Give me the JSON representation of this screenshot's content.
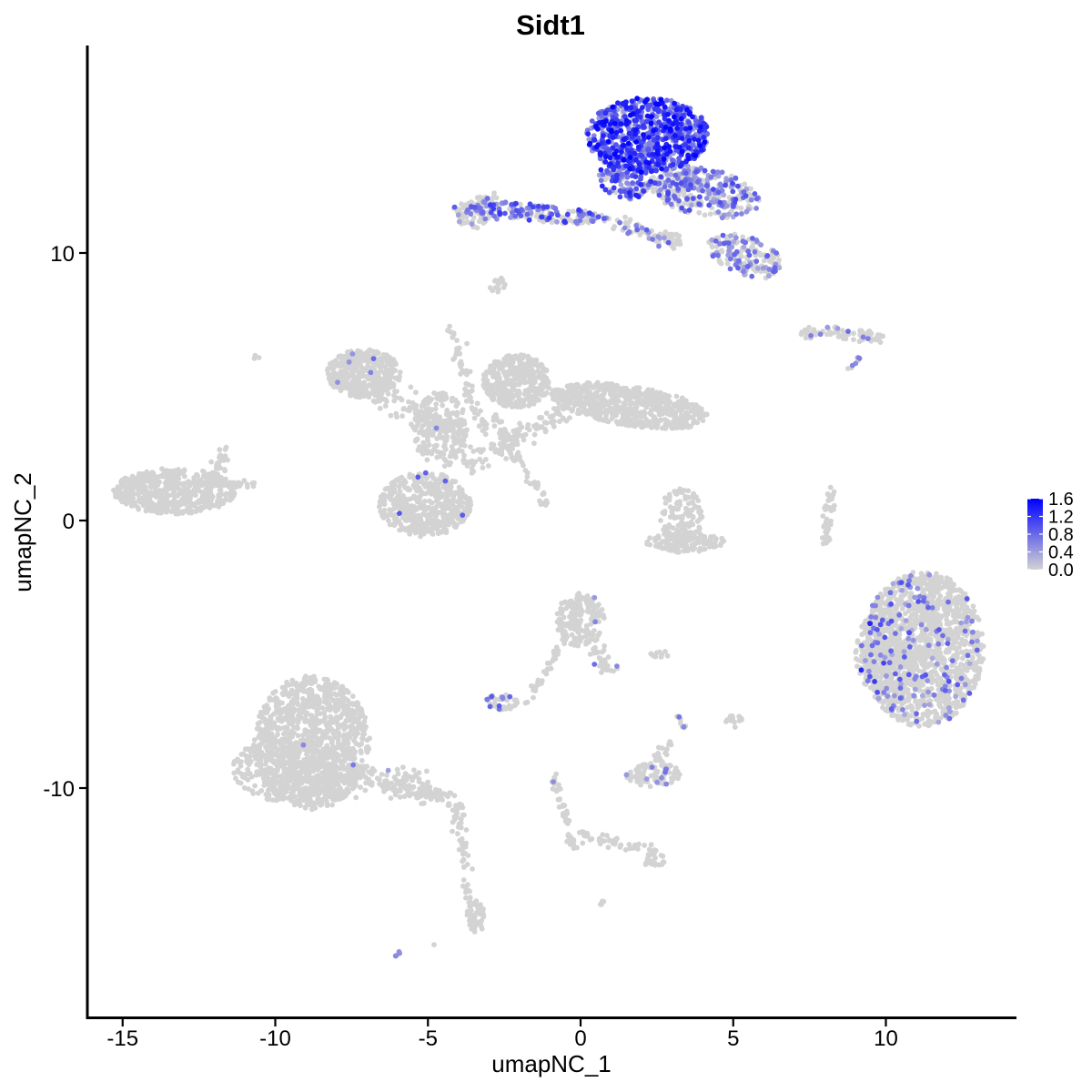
{
  "chart_data": {
    "type": "scatter",
    "title": "Sidt1",
    "xlabel": "umapNC_1",
    "ylabel": "umapNC_2",
    "xlim": [
      -16.5,
      14.5
    ],
    "ylim": [
      -18.5,
      17.5
    ],
    "xticks": [
      -15,
      -10,
      -5,
      0,
      5,
      10
    ],
    "xtick_labels": [
      "-15",
      "-10",
      "-5",
      "0",
      "5",
      "10"
    ],
    "yticks": [
      -10,
      0,
      10
    ],
    "ytick_labels": [
      "-10",
      "0",
      "10"
    ],
    "grid": false,
    "color_scale": {
      "low": "#d3d3d3",
      "high": "#0000ff",
      "min": 0.0,
      "max": 1.6,
      "legend_ticks": [
        0.0,
        0.4,
        0.8,
        1.2,
        1.6
      ],
      "legend_tick_labels": [
        "0.0",
        "0.4",
        "0.8",
        "1.2",
        "1.6"
      ],
      "legend_position": "right"
    },
    "clusters": [
      {
        "shape": "ellipse",
        "cx": 2.2,
        "cy": 14.4,
        "rx": 2.0,
        "ry": 1.4,
        "rot": 0,
        "n": 750,
        "frac": 0.9,
        "emin": 0.4,
        "emax": 1.6
      },
      {
        "shape": "ellipse",
        "cx": 1.5,
        "cy": 12.9,
        "rx": 0.9,
        "ry": 0.9,
        "rot": 0,
        "n": 160,
        "frac": 0.7,
        "emin": 0.35,
        "emax": 1.4
      },
      {
        "shape": "ellipse",
        "cx": 4.0,
        "cy": 12.3,
        "rx": 1.9,
        "ry": 0.9,
        "rot": -15,
        "n": 320,
        "frac": 0.55,
        "emin": 0.3,
        "emax": 1.1
      },
      {
        "shape": "ellipse",
        "cx": 5.4,
        "cy": 9.9,
        "rx": 1.3,
        "ry": 0.7,
        "rot": -25,
        "n": 170,
        "frac": 0.35,
        "emin": 0.3,
        "emax": 0.9
      },
      {
        "shape": "ellipse",
        "cx": -1.5,
        "cy": 11.5,
        "rx": 2.5,
        "ry": 0.32,
        "rot": -6,
        "n": 180,
        "frac": 0.4,
        "emin": 0.4,
        "emax": 1.2
      },
      {
        "shape": "ellipse",
        "cx": -3.4,
        "cy": 11.4,
        "rx": 0.7,
        "ry": 0.5,
        "rot": 0,
        "n": 45,
        "frac": 0.3,
        "emin": 0.3,
        "emax": 0.9
      },
      {
        "shape": "line",
        "x1": -4.1,
        "y1": 11.5,
        "x2": -2.7,
        "y2": 12.1,
        "n": 40,
        "w": 0.25,
        "frac": 0.3,
        "emin": 0.3,
        "emax": 0.9
      },
      {
        "shape": "line",
        "x1": 1.1,
        "y1": 11.1,
        "x2": 3.3,
        "y2": 10.4,
        "n": 70,
        "w": 0.3,
        "frac": 0.2,
        "emin": 0.3,
        "emax": 0.9
      },
      {
        "shape": "ellipse",
        "cx": -2.7,
        "cy": 8.8,
        "rx": 0.3,
        "ry": 0.3,
        "rot": 0,
        "n": 18,
        "frac": 0,
        "emin": 0,
        "emax": 0
      },
      {
        "shape": "line",
        "x1": 7.2,
        "y1": 7.1,
        "x2": 9.9,
        "y2": 6.8,
        "n": 80,
        "w": 0.28,
        "frac": 0.12,
        "emin": 0.4,
        "emax": 0.9
      },
      {
        "shape": "line",
        "x1": 8.8,
        "y1": 5.6,
        "x2": 9.3,
        "y2": 6.4,
        "n": 8,
        "w": 0.1,
        "frac": 0.4,
        "emin": 0.5,
        "emax": 0.8
      },
      {
        "shape": "ellipse",
        "cx": -7.1,
        "cy": 5.5,
        "rx": 1.2,
        "ry": 0.9,
        "rot": 0,
        "n": 380,
        "frac": 0.01,
        "emin": 0.4,
        "emax": 0.8
      },
      {
        "shape": "ellipse",
        "cx": -2.1,
        "cy": 5.2,
        "rx": 1.1,
        "ry": 1.0,
        "rot": 0,
        "n": 400,
        "frac": 0,
        "emin": 0,
        "emax": 0
      },
      {
        "shape": "ellipse",
        "cx": 1.6,
        "cy": 4.3,
        "rx": 2.6,
        "ry": 0.75,
        "rot": -10,
        "n": 650,
        "frac": 0,
        "emin": 0,
        "emax": 0
      },
      {
        "shape": "line",
        "x1": -6.8,
        "y1": 4.8,
        "x2": -3.9,
        "y2": 3.4,
        "n": 110,
        "w": 0.45,
        "frac": 0,
        "emin": 0,
        "emax": 0
      },
      {
        "shape": "line",
        "x1": -4.3,
        "y1": 7.3,
        "x2": -3.2,
        "y2": 3.2,
        "n": 60,
        "w": 0.2,
        "frac": 0,
        "emin": 0,
        "emax": 0
      },
      {
        "shape": "line",
        "x1": -2.9,
        "y1": 3.9,
        "x2": -1.1,
        "y2": 0.6,
        "n": 55,
        "w": 0.2,
        "frac": 0,
        "emin": 0,
        "emax": 0
      },
      {
        "shape": "line",
        "x1": -3.8,
        "y1": 2.0,
        "x2": -0.5,
        "y2": 4.2,
        "n": 120,
        "w": 0.4,
        "frac": 0,
        "emin": 0,
        "emax": 0
      },
      {
        "shape": "ellipse",
        "cx": -4.6,
        "cy": 3.4,
        "rx": 0.9,
        "ry": 1.4,
        "rot": 0,
        "n": 200,
        "frac": 0.01,
        "emin": 0.5,
        "emax": 0.8
      },
      {
        "shape": "ellipse",
        "cx": -5.1,
        "cy": 0.6,
        "rx": 1.5,
        "ry": 1.2,
        "rot": 0,
        "n": 500,
        "frac": 0.01,
        "emin": 0.5,
        "emax": 1.0
      },
      {
        "shape": "ellipse",
        "cx": -13.3,
        "cy": 1.1,
        "rx": 2.0,
        "ry": 0.85,
        "rot": 0,
        "n": 520,
        "frac": 0,
        "emin": 0,
        "emax": 0
      },
      {
        "shape": "line",
        "x1": -12.1,
        "y1": 1.2,
        "x2": -11.5,
        "y2": 2.7,
        "n": 45,
        "w": 0.3,
        "frac": 0.03,
        "emin": 0.6,
        "emax": 0.8
      },
      {
        "shape": "line",
        "x1": -11.6,
        "y1": 1.3,
        "x2": -10.6,
        "y2": 1.4,
        "n": 20,
        "w": 0.15,
        "frac": 0,
        "emin": 0,
        "emax": 0
      },
      {
        "shape": "ellipse",
        "cx": 3.3,
        "cy": 0.2,
        "rx": 0.7,
        "ry": 1.0,
        "rot": 0,
        "n": 110,
        "frac": 0,
        "emin": 0,
        "emax": 0
      },
      {
        "shape": "ellipse",
        "cx": 3.4,
        "cy": -0.8,
        "rx": 1.3,
        "ry": 0.4,
        "rot": 0,
        "n": 130,
        "frac": 0,
        "emin": 0,
        "emax": 0
      },
      {
        "shape": "line",
        "x1": 8.2,
        "y1": 1.3,
        "x2": 8.0,
        "y2": -0.9,
        "n": 50,
        "w": 0.15,
        "frac": 0,
        "emin": 0,
        "emax": 0
      },
      {
        "shape": "ellipse",
        "cx": 11.2,
        "cy": -4.8,
        "rx": 2.0,
        "ry": 2.9,
        "rot": 0,
        "n": 1500,
        "frac": 0.09,
        "emin": 0.3,
        "emax": 1.0
      },
      {
        "shape": "ellipse",
        "cx": 10.0,
        "cy": -5.0,
        "rx": 1.0,
        "ry": 1.7,
        "rot": 0,
        "n": 200,
        "frac": 0.08,
        "emin": 0.3,
        "emax": 1.4
      },
      {
        "shape": "ellipse",
        "cx": 0.0,
        "cy": -3.7,
        "rx": 0.8,
        "ry": 1.0,
        "rot": 0,
        "n": 190,
        "frac": 0.02,
        "emin": 0.4,
        "emax": 0.8
      },
      {
        "shape": "line",
        "x1": 0.4,
        "y1": -4.8,
        "x2": 1.1,
        "y2": -5.7,
        "n": 30,
        "w": 0.25,
        "frac": 0.1,
        "emin": 0.4,
        "emax": 0.8
      },
      {
        "shape": "line",
        "x1": -0.5,
        "y1": -4.3,
        "x2": -1.8,
        "y2": -6.9,
        "n": 40,
        "w": 0.15,
        "frac": 0,
        "emin": 0,
        "emax": 0
      },
      {
        "shape": "ellipse",
        "cx": -2.6,
        "cy": -6.8,
        "rx": 0.55,
        "ry": 0.3,
        "rot": 0,
        "n": 45,
        "frac": 0.2,
        "emin": 0.5,
        "emax": 1.0
      },
      {
        "shape": "ellipse",
        "cx": 2.4,
        "cy": -9.5,
        "rx": 0.9,
        "ry": 0.45,
        "rot": 0,
        "n": 90,
        "frac": 0.08,
        "emin": 0.4,
        "emax": 0.8
      },
      {
        "shape": "line",
        "x1": 2.5,
        "y1": -9.0,
        "x2": 3.0,
        "y2": -8.3,
        "n": 20,
        "w": 0.2,
        "frac": 0,
        "emin": 0,
        "emax": 0
      },
      {
        "shape": "line",
        "x1": 3.2,
        "y1": -7.3,
        "x2": 3.5,
        "y2": -7.9,
        "n": 10,
        "w": 0.1,
        "frac": 0.4,
        "emin": 0.4,
        "emax": 0.8
      },
      {
        "shape": "ellipse",
        "cx": 5.0,
        "cy": -7.5,
        "rx": 0.3,
        "ry": 0.25,
        "rot": 0,
        "n": 14,
        "frac": 0,
        "emin": 0,
        "emax": 0
      },
      {
        "shape": "ellipse",
        "cx": 2.6,
        "cy": -5.0,
        "rx": 0.35,
        "ry": 0.12,
        "rot": 0,
        "n": 10,
        "frac": 0,
        "emin": 0,
        "emax": 0
      },
      {
        "shape": "ellipse",
        "cx": -8.8,
        "cy": -8.3,
        "rx": 1.9,
        "ry": 2.5,
        "rot": 0,
        "n": 1100,
        "frac": 0.002,
        "emin": 0.4,
        "emax": 0.7
      },
      {
        "shape": "ellipse",
        "cx": -9.6,
        "cy": -9.3,
        "rx": 1.8,
        "ry": 1.2,
        "rot": 0,
        "n": 300,
        "frac": 0,
        "emin": 0,
        "emax": 0
      },
      {
        "shape": "line",
        "x1": -8.6,
        "y1": -9.3,
        "x2": -5.0,
        "y2": -10.1,
        "n": 170,
        "w": 0.55,
        "frac": 0.005,
        "emin": 0.4,
        "emax": 0.7
      },
      {
        "shape": "line",
        "x1": -5.3,
        "y1": -10.1,
        "x2": -4.0,
        "y2": -10.4,
        "n": 40,
        "w": 0.3,
        "frac": 0,
        "emin": 0,
        "emax": 0
      },
      {
        "shape": "line",
        "x1": -4.1,
        "y1": -10.6,
        "x2": -3.5,
        "y2": -15.2,
        "n": 70,
        "w": 0.2,
        "frac": 0.01,
        "emin": 0.5,
        "emax": 0.7
      },
      {
        "shape": "ellipse",
        "cx": -3.4,
        "cy": -14.8,
        "rx": 0.3,
        "ry": 0.6,
        "rot": 0,
        "n": 40,
        "frac": 0,
        "emin": 0,
        "emax": 0
      },
      {
        "shape": "line",
        "x1": -0.9,
        "y1": -9.5,
        "x2": -0.2,
        "y2": -12.3,
        "n": 45,
        "w": 0.15,
        "frac": 0.04,
        "emin": 0.4,
        "emax": 0.7
      },
      {
        "shape": "line",
        "x1": -0.2,
        "y1": -11.7,
        "x2": 2.5,
        "y2": -12.4,
        "n": 50,
        "w": 0.2,
        "frac": 0,
        "emin": 0,
        "emax": 0
      },
      {
        "shape": "ellipse",
        "cx": 2.4,
        "cy": -12.7,
        "rx": 0.35,
        "ry": 0.3,
        "rot": 0,
        "n": 20,
        "frac": 0,
        "emin": 0,
        "emax": 0
      },
      {
        "shape": "line",
        "x1": -6.1,
        "y1": -16.3,
        "x2": -5.8,
        "y2": -16.1,
        "n": 5,
        "w": 0.08,
        "frac": 0.5,
        "emin": 0.4,
        "emax": 0.7
      },
      {
        "shape": "ellipse",
        "cx": 0.7,
        "cy": -14.3,
        "rx": 0.1,
        "ry": 0.1,
        "rot": 0,
        "n": 4,
        "frac": 0,
        "emin": 0,
        "emax": 0
      },
      {
        "shape": "ellipse",
        "cx": -10.6,
        "cy": 6.1,
        "rx": 0.1,
        "ry": 0.1,
        "rot": 0,
        "n": 3,
        "frac": 0,
        "emin": 0,
        "emax": 0
      },
      {
        "shape": "ellipse",
        "cx": -4.8,
        "cy": -15.9,
        "rx": 0.05,
        "ry": 0.05,
        "rot": 0,
        "n": 1,
        "frac": 0,
        "emin": 0,
        "emax": 0
      }
    ]
  }
}
